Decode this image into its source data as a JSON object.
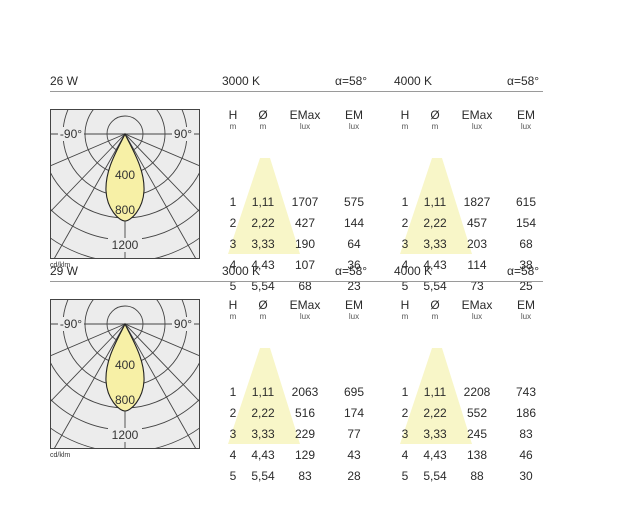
{
  "labels": {
    "dia_unit": "Ø",
    "dia_unit_sub": "m"
  },
  "blocks": [
    {
      "power": "26 W",
      "unit": "cd/klm",
      "sections": [
        {
          "cct": "3000 K",
          "angle": "α=58°",
          "headers": {
            "h": "H",
            "h_unit": "m",
            "d": "Ø",
            "d_unit": "m",
            "emax": "EMax",
            "emax_unit": "lux",
            "em": "EM",
            "em_unit": "lux"
          },
          "rows": [
            {
              "h": "1",
              "d": "1,11",
              "emax": "1707",
              "em": "575"
            },
            {
              "h": "2",
              "d": "2,22",
              "emax": "427",
              "em": "144"
            },
            {
              "h": "3",
              "d": "3,33",
              "emax": "190",
              "em": "64"
            },
            {
              "h": "4",
              "d": "4,43",
              "emax": "107",
              "em": "36"
            },
            {
              "h": "5",
              "d": "5,54",
              "emax": "68",
              "em": "23"
            }
          ]
        },
        {
          "cct": "4000 K",
          "angle": "α=58°",
          "headers": {
            "h": "H",
            "h_unit": "m",
            "d": "Ø",
            "d_unit": "m",
            "emax": "EMax",
            "emax_unit": "lux",
            "em": "EM",
            "em_unit": "lux"
          },
          "rows": [
            {
              "h": "1",
              "d": "1,11",
              "emax": "1827",
              "em": "615"
            },
            {
              "h": "2",
              "d": "2,22",
              "emax": "457",
              "em": "154"
            },
            {
              "h": "3",
              "d": "3,33",
              "emax": "203",
              "em": "68"
            },
            {
              "h": "4",
              "d": "4,43",
              "emax": "114",
              "em": "38"
            },
            {
              "h": "5",
              "d": "5,54",
              "emax": "73",
              "em": "25"
            }
          ]
        }
      ],
      "polar": {
        "left_angle": "-90°",
        "right_angle": "90°",
        "r1": "400",
        "r2": "800",
        "r3": "1200"
      }
    },
    {
      "power": "29 W",
      "unit": "cd/klm",
      "sections": [
        {
          "cct": "3000 K",
          "angle": "α=58°",
          "headers": {
            "h": "H",
            "h_unit": "m",
            "d": "Ø",
            "d_unit": "m",
            "emax": "EMax",
            "emax_unit": "lux",
            "em": "EM",
            "em_unit": "lux"
          },
          "rows": [
            {
              "h": "1",
              "d": "1,11",
              "emax": "2063",
              "em": "695"
            },
            {
              "h": "2",
              "d": "2,22",
              "emax": "516",
              "em": "174"
            },
            {
              "h": "3",
              "d": "3,33",
              "emax": "229",
              "em": "77"
            },
            {
              "h": "4",
              "d": "4,43",
              "emax": "129",
              "em": "43"
            },
            {
              "h": "5",
              "d": "5,54",
              "emax": "83",
              "em": "28"
            }
          ]
        },
        {
          "cct": "4000 K",
          "angle": "α=58°",
          "headers": {
            "h": "H",
            "h_unit": "m",
            "d": "Ø",
            "d_unit": "m",
            "emax": "EMax",
            "emax_unit": "lux",
            "em": "EM",
            "em_unit": "lux"
          },
          "rows": [
            {
              "h": "1",
              "d": "1,11",
              "emax": "2208",
              "em": "743"
            },
            {
              "h": "2",
              "d": "2,22",
              "emax": "552",
              "em": "186"
            },
            {
              "h": "3",
              "d": "3,33",
              "emax": "245",
              "em": "83"
            },
            {
              "h": "4",
              "d": "4,43",
              "emax": "138",
              "em": "46"
            },
            {
              "h": "5",
              "d": "5,54",
              "emax": "88",
              "em": "30"
            }
          ]
        }
      ],
      "polar": {
        "left_angle": "-90°",
        "right_angle": "90°",
        "r1": "400",
        "r2": "800",
        "r3": "1200"
      }
    }
  ],
  "colors": {
    "beam": "#f7f0a6",
    "cone": "#f8f6c8",
    "grid_bg": "#ececec",
    "grid": "#444444",
    "rule": "#9a9a9a"
  }
}
